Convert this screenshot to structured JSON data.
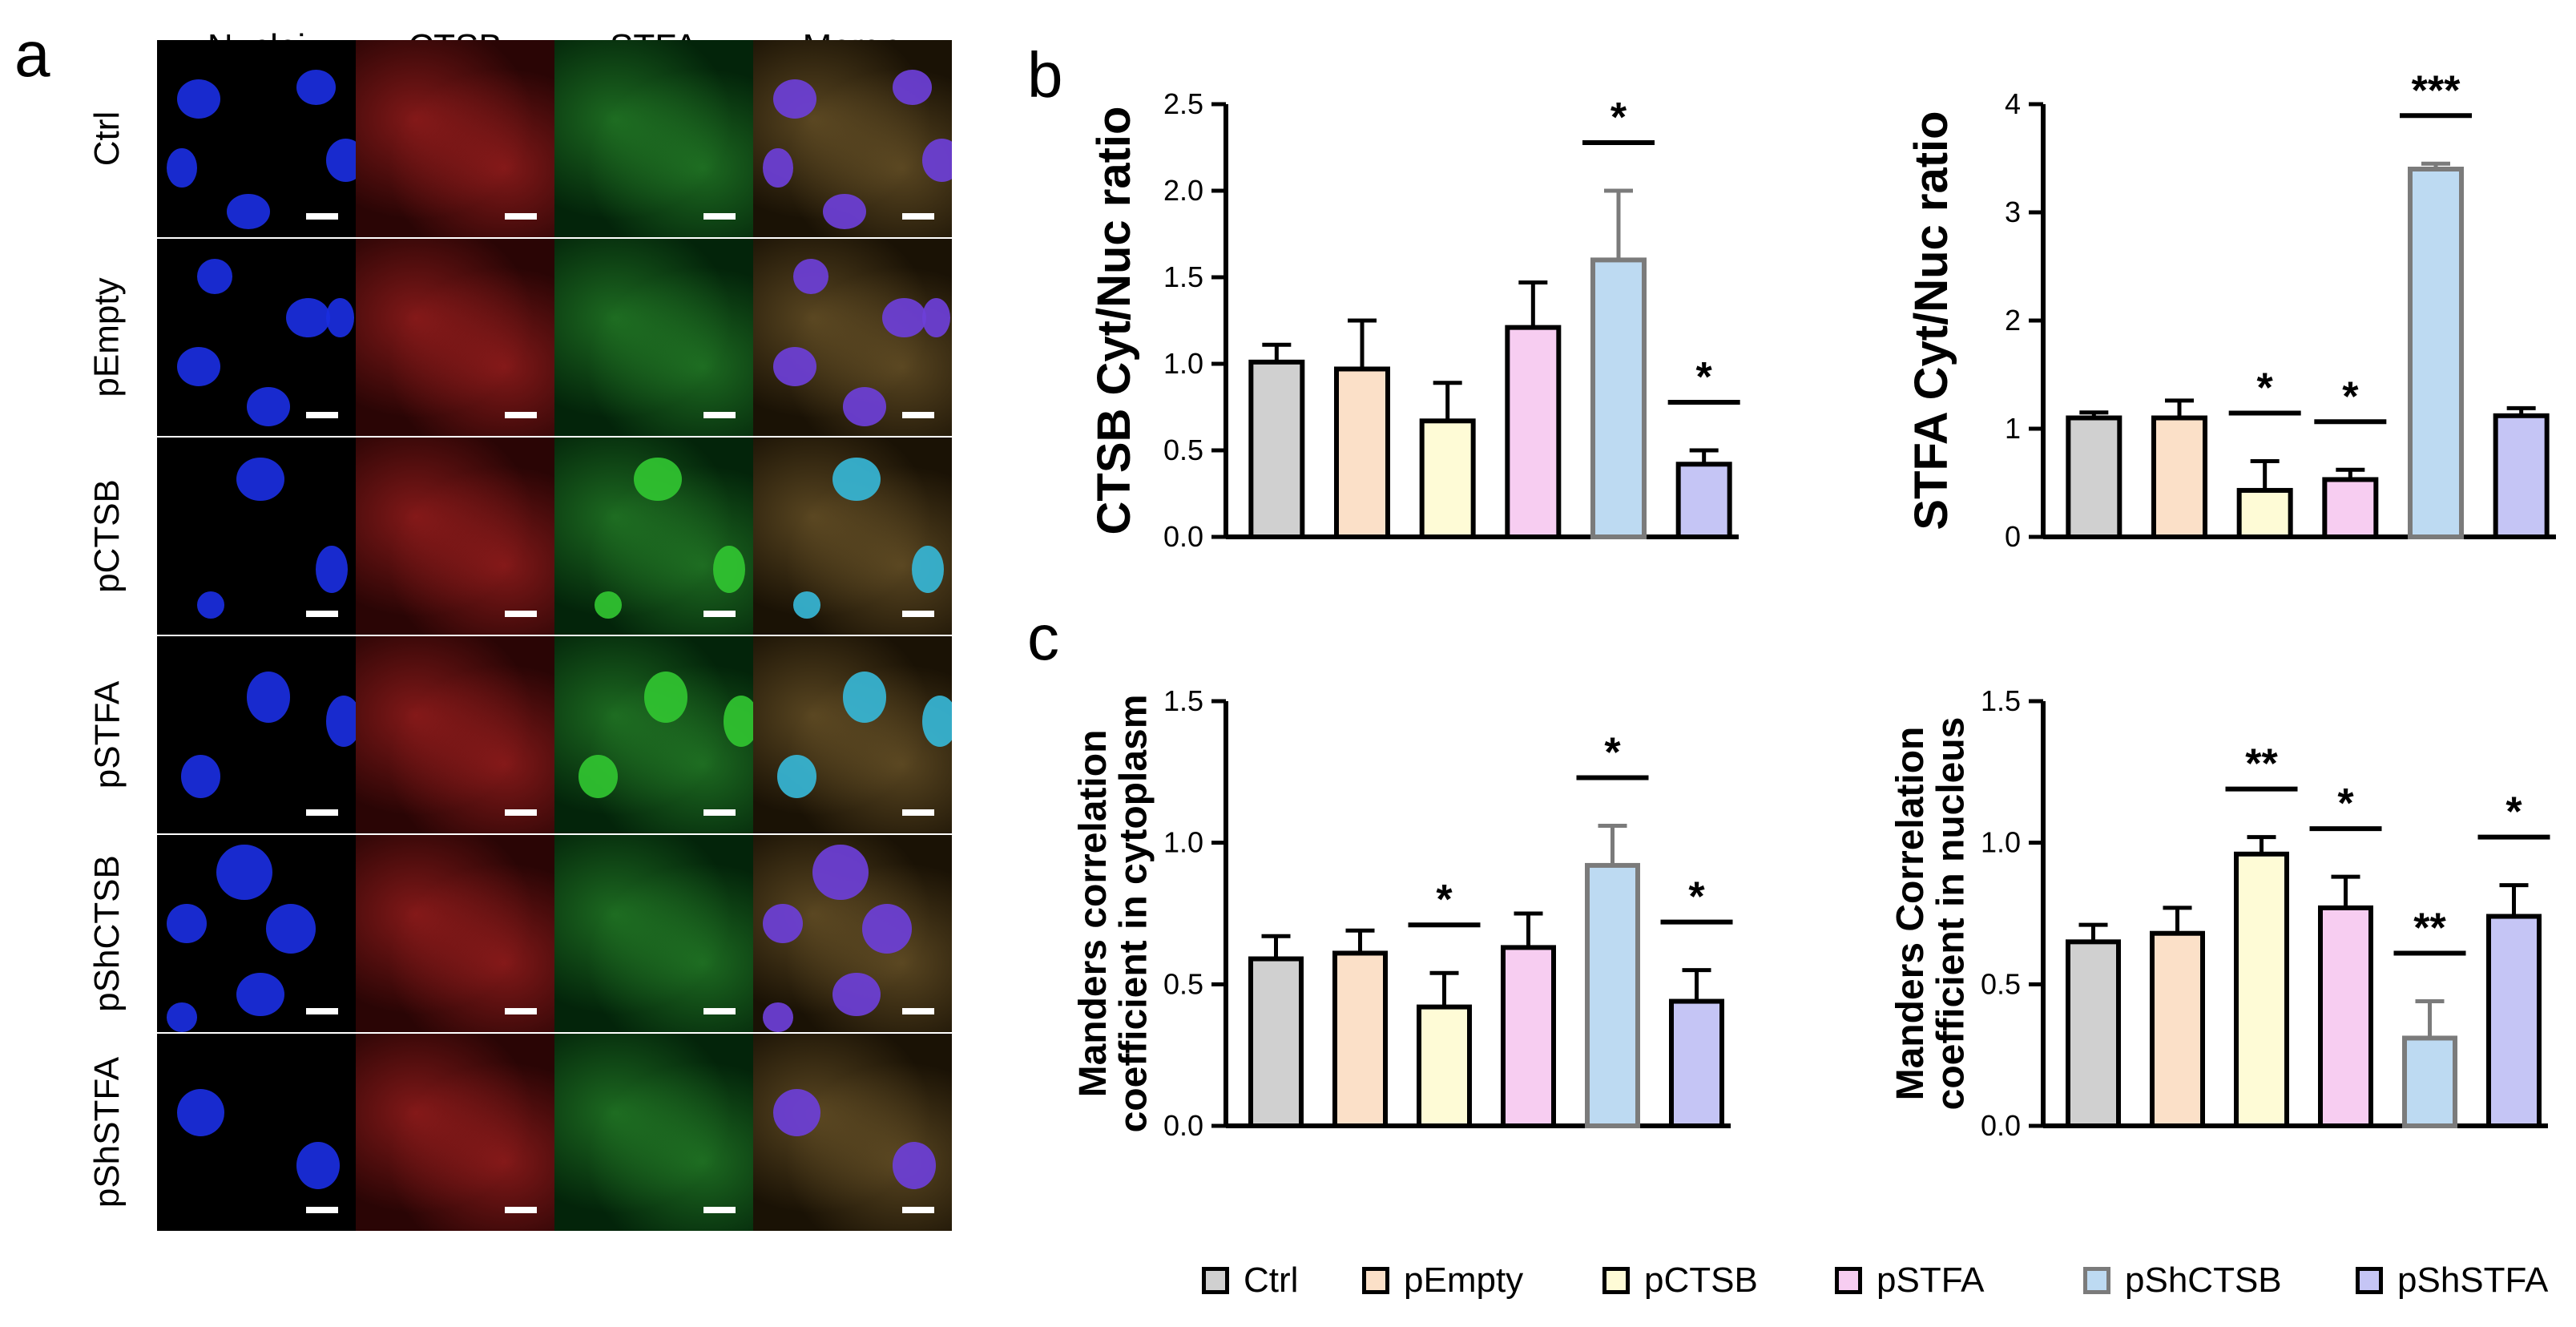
{
  "panels": {
    "a": "a",
    "b": "b",
    "c": "c"
  },
  "microscopy": {
    "columns": [
      "Nuclei",
      "CTSB",
      "STFA",
      "Merge"
    ],
    "rows": [
      "Ctrl",
      "pEmpty",
      "pCTSB",
      "pSTFA",
      "pShCTSB",
      "pShSTFA"
    ]
  },
  "colors": {
    "Ctrl": "#d0d0d0",
    "pEmpty": "#fbe0c8",
    "pCTSB": "#fefbd6",
    "pSTFA": "#f7cdf1",
    "pShCTSB": "#bddaf2",
    "pShSTFA": "#c5c5f5",
    "highlight_border": "#7b7b7b",
    "nuclei": "#1f2fd8",
    "ctsb": "#c81e1e",
    "stfa": "#2eb82e"
  },
  "legend": {
    "items": [
      "Ctrl",
      "pEmpty",
      "pCTSB",
      "pSTFA",
      "pShCTSB",
      "pShSTFA"
    ]
  },
  "chart_data": [
    {
      "type": "bar",
      "id": "ctsb",
      "categories": [
        "Ctrl",
        "pEmpty",
        "pCTSB",
        "pSTFA",
        "pShCTSB",
        "pShSTFA"
      ],
      "values": [
        1.01,
        0.97,
        0.67,
        1.21,
        1.6,
        0.42
      ],
      "errors": [
        0.1,
        0.28,
        0.22,
        0.26,
        0.4,
        0.08
      ],
      "ylabel": "CTSB Cyt/Nuc ratio",
      "ylim": [
        0,
        2.5
      ],
      "yticks": [
        "0.0",
        "0.5",
        "1.0",
        "1.5",
        "2.0",
        "2.5"
      ],
      "significance": [
        {
          "category": "pShCTSB",
          "label": "*"
        },
        {
          "category": "pShSTFA",
          "label": "*"
        }
      ]
    },
    {
      "type": "bar",
      "id": "stfa",
      "categories": [
        "Ctrl",
        "pEmpty",
        "pCTSB",
        "pSTFA",
        "pShCTSB",
        "pShSTFA"
      ],
      "values": [
        1.1,
        1.1,
        0.43,
        0.53,
        3.4,
        1.12
      ],
      "errors": [
        0.05,
        0.16,
        0.27,
        0.09,
        0.05,
        0.07
      ],
      "ylabel": "STFA Cyt/Nuc ratio",
      "ylim": [
        0,
        4
      ],
      "yticks": [
        "0",
        "1",
        "2",
        "3",
        "4"
      ],
      "significance": [
        {
          "category": "pCTSB",
          "label": "*"
        },
        {
          "category": "pSTFA",
          "label": "*"
        },
        {
          "category": "pShCTSB",
          "label": "***"
        }
      ]
    },
    {
      "type": "bar",
      "id": "manders_cyto",
      "categories": [
        "Ctrl",
        "pEmpty",
        "pCTSB",
        "pSTFA",
        "pShCTSB",
        "pShSTFA"
      ],
      "values": [
        0.59,
        0.61,
        0.42,
        0.63,
        0.92,
        0.44
      ],
      "errors": [
        0.08,
        0.08,
        0.12,
        0.12,
        0.14,
        0.11
      ],
      "ylabel": "Manders correlation coefficient in cytoplasm",
      "ylabel_lines": [
        "Manders correlation",
        "coefficient in cytoplasm"
      ],
      "ylim": [
        0,
        1.5
      ],
      "yticks": [
        "0.0",
        "0.5",
        "1.0",
        "1.5"
      ],
      "significance": [
        {
          "category": "pCTSB",
          "label": "*"
        },
        {
          "category": "pShCTSB",
          "label": "*"
        },
        {
          "category": "pShSTFA",
          "label": "*"
        }
      ]
    },
    {
      "type": "bar",
      "id": "manders_nuc",
      "categories": [
        "Ctrl",
        "pEmpty",
        "pCTSB",
        "pSTFA",
        "pShCTSB",
        "pShSTFA"
      ],
      "values": [
        0.65,
        0.68,
        0.96,
        0.77,
        0.31,
        0.74
      ],
      "errors": [
        0.06,
        0.09,
        0.06,
        0.11,
        0.13,
        0.11
      ],
      "ylabel": "Manders Correlation coefficient in nucleus",
      "ylabel_lines": [
        "Manders Correlation",
        "coefficient in nucleus"
      ],
      "ylim": [
        0,
        1.5
      ],
      "yticks": [
        "0.0",
        "0.5",
        "1.0",
        "1.5"
      ],
      "significance": [
        {
          "category": "pCTSB",
          "label": "**"
        },
        {
          "category": "pSTFA",
          "label": "*"
        },
        {
          "category": "pShCTSB",
          "label": "**"
        },
        {
          "category": "pShSTFA",
          "label": "*"
        }
      ]
    }
  ]
}
